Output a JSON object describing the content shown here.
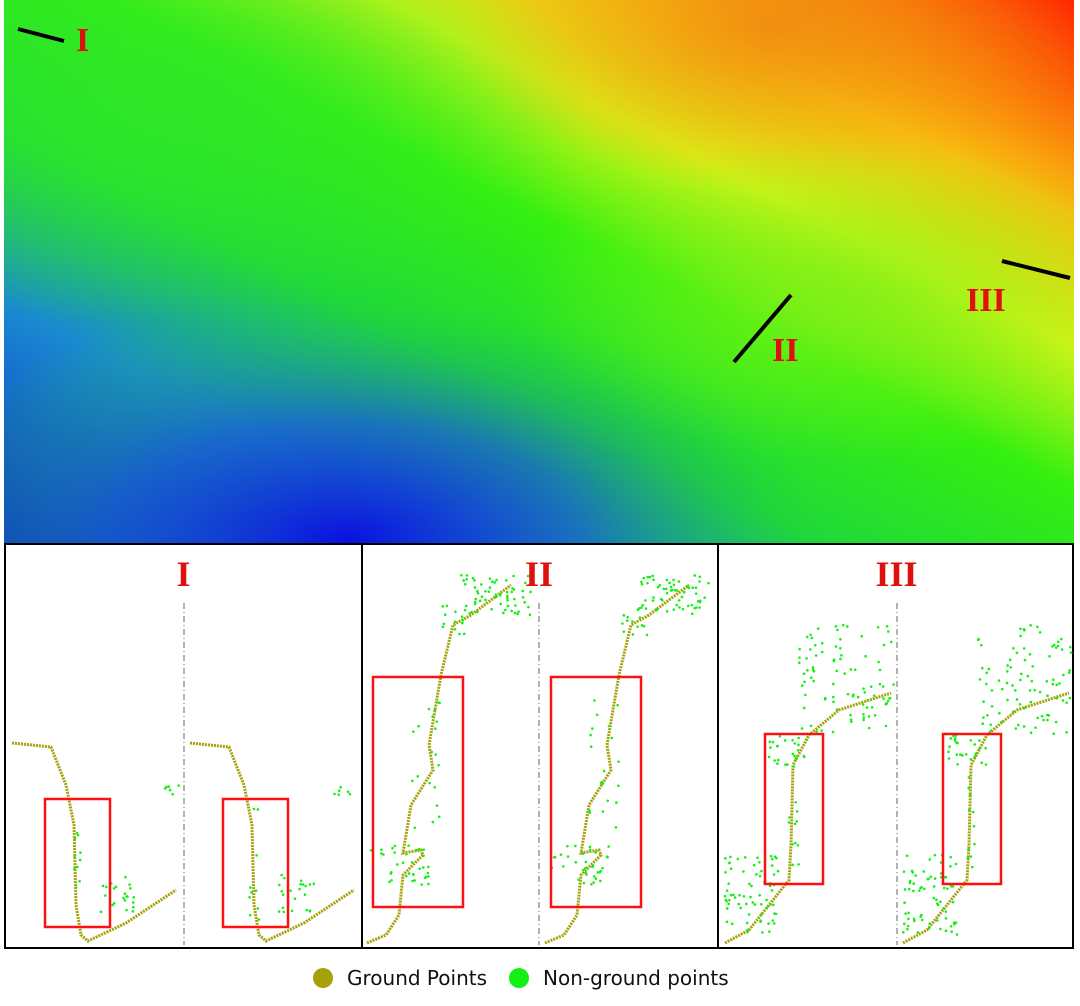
{
  "map": {
    "section_labels": [
      "I",
      "II",
      "III"
    ],
    "colors": {
      "low": "#0a1fd8",
      "mid": "#19e51a",
      "high_mid": "#f2f516",
      "high": "#ff2a05"
    }
  },
  "panels": [
    {
      "title": "I"
    },
    {
      "title": "II"
    },
    {
      "title": "III"
    }
  ],
  "legend": {
    "items": [
      {
        "label": "Ground Points",
        "color": "#a6a10a"
      },
      {
        "label": "Non-ground points",
        "color": "#14f014"
      }
    ]
  },
  "highlight_color": "#ff1010"
}
